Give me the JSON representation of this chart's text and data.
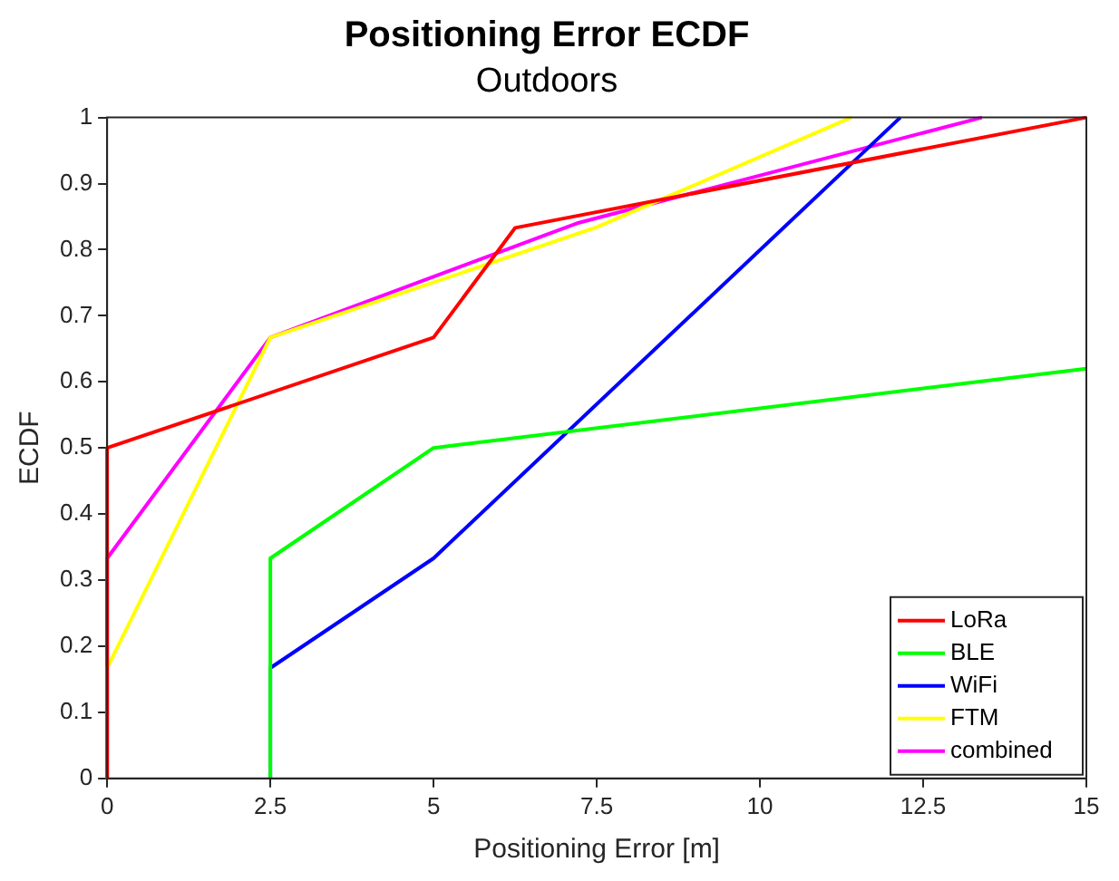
{
  "chart_data": {
    "type": "line",
    "title": "Positioning Error ECDF",
    "subtitle": "Outdoors",
    "xlabel": "Positioning Error [m]",
    "ylabel": "ECDF",
    "xlim": [
      0,
      15
    ],
    "xticks": [
      0,
      2.5,
      5,
      7.5,
      10,
      12.5,
      15
    ],
    "ylim": [
      0,
      1
    ],
    "yticks": [
      0,
      0.1,
      0.2,
      0.3,
      0.4,
      0.5,
      0.6,
      0.7,
      0.8,
      0.9,
      1
    ],
    "grid": false,
    "legend": "bottom right",
    "marker": "none",
    "line_style": "solid",
    "series": [
      {
        "name": "LoRa",
        "color": "#ff0000",
        "x": [
          0,
          0,
          5,
          6.25,
          15
        ],
        "values": [
          0,
          0.5,
          0.667,
          0.833,
          1
        ]
      },
      {
        "name": "BLE",
        "color": "#00ff00",
        "x": [
          2.5,
          2.5,
          5,
          15
        ],
        "values": [
          0,
          0.333,
          0.5,
          0.62
        ]
      },
      {
        "name": "WiFi",
        "color": "#0000ff",
        "x": [
          2.5,
          2.5,
          5,
          12.15
        ],
        "values": [
          0,
          0.167,
          0.333,
          1
        ]
      },
      {
        "name": "FTM",
        "color": "#ffff00",
        "x": [
          0,
          0,
          2.5,
          7.5,
          11.4
        ],
        "values": [
          0,
          0.167,
          0.667,
          0.834,
          1
        ]
      },
      {
        "name": "combined",
        "color": "#ff00ff",
        "x": [
          0,
          0,
          2.5,
          7.2,
          13.4
        ],
        "values": [
          0,
          0.333,
          0.667,
          0.84,
          1
        ]
      }
    ]
  }
}
